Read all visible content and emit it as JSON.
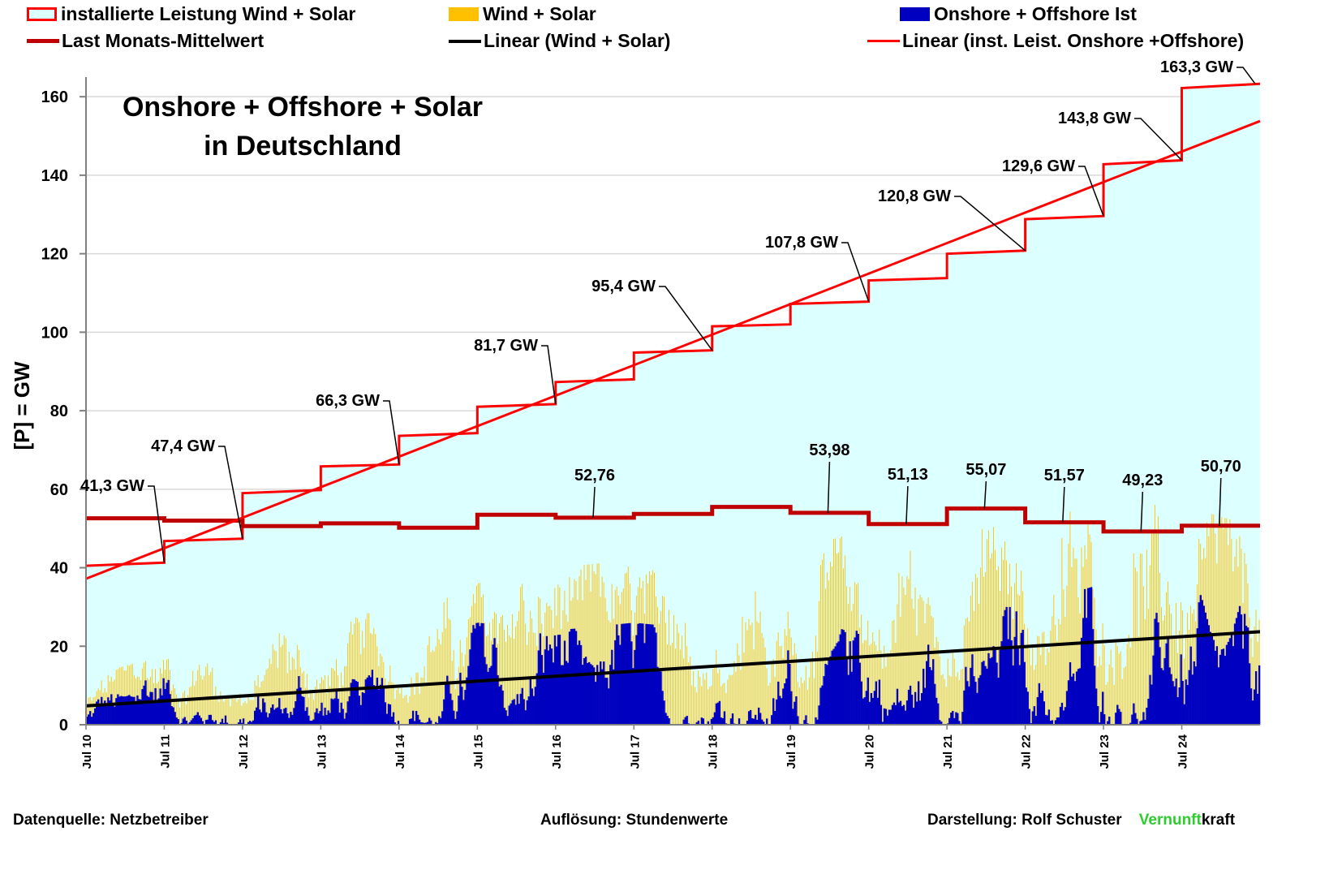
{
  "legend": [
    {
      "label": "installierte Leistung Wind + Solar",
      "kind": "box",
      "fill": "#dcffff",
      "stroke": "#ff0000"
    },
    {
      "label": "Wind + Solar",
      "kind": "box",
      "fill": "#ffc000",
      "stroke": "#ffc000"
    },
    {
      "label": "Onshore + Offshore Ist",
      "kind": "box",
      "fill": "#0000c0",
      "stroke": "#0000c0"
    },
    {
      "label": "Last Monats-Mittelwert",
      "kind": "line",
      "stroke": "#c00000"
    },
    {
      "label": "Linear (Wind + Solar)",
      "kind": "line",
      "stroke": "#000000"
    },
    {
      "label": "Linear (inst. Leist. Onshore +Offshore)",
      "kind": "line",
      "stroke": "#ff0000"
    }
  ],
  "footer": {
    "source": "Datenquelle: Netzbetreiber",
    "resolution": "Auflösung: Stundenwerte",
    "author": "Darstellung:  Rolf Schuster",
    "brand_green": "Vernunft",
    "brand_black": "kraft"
  },
  "colors": {
    "installed_fill": "#dcffff",
    "installed_line": "#ff0000",
    "wind_solar": "#ffc000",
    "onshore_offshore": "#0000c0",
    "load": "#c00000",
    "trend_installed": "#ff0000",
    "trend_wind_solar": "#000000",
    "grid": "#d9d9d9",
    "axis": "#808080"
  },
  "chart_data": {
    "type": "area",
    "title": "Onshore + Offshore + Solar",
    "subtitle": "in Deutschland",
    "xlabel": "",
    "ylabel": "[P]  =  GW",
    "ylim": [
      0,
      165
    ],
    "yticks": [
      0,
      20,
      40,
      60,
      80,
      100,
      120,
      140,
      160
    ],
    "xlim_years": [
      2010.5,
      2025.5
    ],
    "xtick_labels": [
      "Jul 10",
      "Jul 11",
      "Jul 12",
      "Jul 13",
      "Jul 14",
      "Jul 15",
      "Jul 16",
      "Jul 17",
      "Jul 18",
      "Jul 19",
      "Jul 20",
      "Jul 21",
      "Jul 22",
      "Jul 23",
      "Jul 24"
    ],
    "grid": true,
    "legend_position": "top",
    "installed_capacity_steps": {
      "unit": "GW",
      "steps": [
        {
          "start": 2010.5,
          "end": 2011.5,
          "from": 40.5,
          "to": 41.3,
          "label": "41,3 GW"
        },
        {
          "start": 2011.5,
          "end": 2012.5,
          "from": 46.8,
          "to": 47.4,
          "label": "47,4 GW"
        },
        {
          "start": 2012.5,
          "end": 2013.5,
          "from": 59.0,
          "to": 59.8,
          "label": ""
        },
        {
          "start": 2013.5,
          "end": 2014.5,
          "from": 65.8,
          "to": 66.3,
          "label": "66,3 GW"
        },
        {
          "start": 2014.5,
          "end": 2015.5,
          "from": 73.6,
          "to": 74.3,
          "label": ""
        },
        {
          "start": 2015.5,
          "end": 2016.5,
          "from": 81.0,
          "to": 81.7,
          "label": "81,7 GW"
        },
        {
          "start": 2016.5,
          "end": 2017.5,
          "from": 87.3,
          "to": 88.0,
          "label": ""
        },
        {
          "start": 2017.5,
          "end": 2018.5,
          "from": 94.8,
          "to": 95.4,
          "label": "95,4 GW"
        },
        {
          "start": 2018.5,
          "end": 2019.5,
          "from": 101.5,
          "to": 102.0,
          "label": ""
        },
        {
          "start": 2019.5,
          "end": 2020.5,
          "from": 107.2,
          "to": 107.8,
          "label": "107,8 GW"
        },
        {
          "start": 2020.5,
          "end": 2021.5,
          "from": 113.2,
          "to": 113.8,
          "label": ""
        },
        {
          "start": 2021.5,
          "end": 2022.5,
          "from": 120.0,
          "to": 120.8,
          "label": "120,8 GW"
        },
        {
          "start": 2022.5,
          "end": 2023.5,
          "from": 128.8,
          "to": 129.6,
          "label": "129,6 GW"
        },
        {
          "start": 2023.5,
          "end": 2024.5,
          "from": 142.8,
          "to": 143.8,
          "label": "143,8 GW"
        },
        {
          "start": 2024.5,
          "end": 2025.5,
          "from": 162.2,
          "to": 163.3,
          "label": "163,3 GW"
        }
      ]
    },
    "load_monthly_mean": {
      "unit": "GW",
      "segments": [
        {
          "start": 2010.5,
          "end": 2011.5,
          "value": 52.6,
          "label": ""
        },
        {
          "start": 2011.5,
          "end": 2012.5,
          "value": 52.0,
          "label": ""
        },
        {
          "start": 2012.5,
          "end": 2013.5,
          "value": 50.6,
          "label": ""
        },
        {
          "start": 2013.5,
          "end": 2014.5,
          "value": 51.3,
          "label": ""
        },
        {
          "start": 2014.5,
          "end": 2015.5,
          "value": 50.2,
          "label": ""
        },
        {
          "start": 2015.5,
          "end": 2016.5,
          "value": 53.5,
          "label": ""
        },
        {
          "start": 2016.5,
          "end": 2017.5,
          "value": 52.76,
          "label": "52,76"
        },
        {
          "start": 2017.5,
          "end": 2018.5,
          "value": 53.7,
          "label": ""
        },
        {
          "start": 2018.5,
          "end": 2019.5,
          "value": 55.5,
          "label": ""
        },
        {
          "start": 2019.5,
          "end": 2020.5,
          "value": 53.98,
          "label": "53,98"
        },
        {
          "start": 2020.5,
          "end": 2021.5,
          "value": 51.13,
          "label": "51,13"
        },
        {
          "start": 2021.5,
          "end": 2022.5,
          "value": 55.07,
          "label": "55,07"
        },
        {
          "start": 2022.5,
          "end": 2023.5,
          "value": 51.57,
          "label": "51,57"
        },
        {
          "start": 2023.5,
          "end": 2024.5,
          "value": 49.23,
          "label": "49,23"
        },
        {
          "start": 2024.5,
          "end": 2025.5,
          "value": 50.7,
          "label": "50,70"
        }
      ]
    },
    "trend_installed": {
      "label": "Linear (inst. Leist. Onshore +Offshore)",
      "from": [
        2010.5,
        37.2
      ],
      "to": [
        2025.5,
        153.8
      ]
    },
    "trend_wind_solar": {
      "label": "Linear (Wind + Solar)",
      "from": [
        2010.5,
        4.8
      ],
      "to": [
        2025.5,
        23.7
      ]
    },
    "hourly_series_note": "Hourly Wind + Solar (peaks ~10 GW in 2010 rising to ~57 GW in 2024) and Onshore + Offshore feed-in (peaks ~12 GW in 2010 rising to ~37 GW in 2024); rendered as approximate envelope",
    "wind_solar_envelope": {
      "years": [
        2010.5,
        2011.5,
        2012.5,
        2013.5,
        2014.5,
        2015.5,
        2016.5,
        2017.5,
        2018.5,
        2019.5,
        2020.5,
        2021.5,
        2022.5,
        2023.5,
        2024.5,
        2025.5
      ],
      "peak": [
        12,
        18,
        22,
        26,
        30,
        36,
        40,
        42,
        41,
        44,
        50,
        48,
        52,
        56,
        56,
        50
      ]
    },
    "onshore_offshore_envelope": {
      "years": [
        2010.5,
        2011.5,
        2012.5,
        2013.5,
        2014.5,
        2015.5,
        2016.5,
        2017.5,
        2018.5,
        2019.5,
        2020.5,
        2021.5,
        2022.5,
        2023.5,
        2024.5,
        2025.5
      ],
      "peak": [
        10,
        14,
        17,
        18,
        18,
        26,
        24,
        26,
        24,
        30,
        32,
        30,
        30,
        36,
        34,
        30
      ]
    }
  }
}
